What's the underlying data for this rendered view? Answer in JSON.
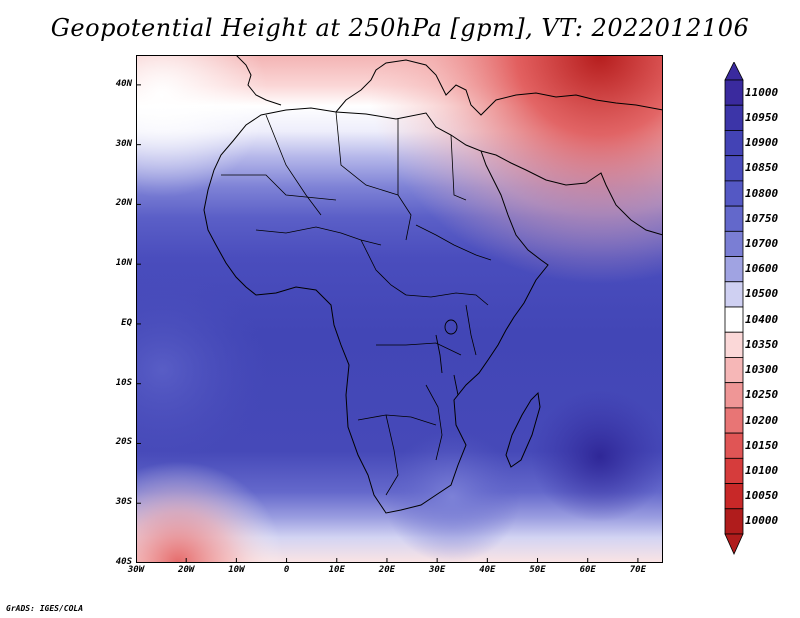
{
  "title": "Geopotential Height at 250hPa [gpm], VT: 2022012106",
  "credit": "GrADS: IGES/COLA",
  "map": {
    "lat_range": [
      -40,
      45
    ],
    "lon_range": [
      -30,
      75
    ],
    "lat_ticks": [
      {
        "value": 40,
        "label": "40N"
      },
      {
        "value": 30,
        "label": "30N"
      },
      {
        "value": 20,
        "label": "20N"
      },
      {
        "value": 10,
        "label": "10N"
      },
      {
        "value": 0,
        "label": "EQ"
      },
      {
        "value": -10,
        "label": "10S"
      },
      {
        "value": -20,
        "label": "20S"
      },
      {
        "value": -30,
        "label": "30S"
      },
      {
        "value": -40,
        "label": "40S"
      }
    ],
    "lon_ticks": [
      {
        "value": -30,
        "label": "30W"
      },
      {
        "value": -20,
        "label": "20W"
      },
      {
        "value": -10,
        "label": "10W"
      },
      {
        "value": 0,
        "label": "0"
      },
      {
        "value": 10,
        "label": "10E"
      },
      {
        "value": 20,
        "label": "20E"
      },
      {
        "value": 30,
        "label": "30E"
      },
      {
        "value": 40,
        "label": "40E"
      },
      {
        "value": 50,
        "label": "50E"
      },
      {
        "value": 60,
        "label": "60E"
      },
      {
        "value": 70,
        "label": "70E"
      }
    ]
  },
  "colorbar": {
    "labels": [
      "11000",
      "10950",
      "10900",
      "10850",
      "10800",
      "10750",
      "10700",
      "10600",
      "10500",
      "10400",
      "10350",
      "10300",
      "10250",
      "10200",
      "10150",
      "10100",
      "10050",
      "10000"
    ],
    "colors": [
      "#3a2a9e",
      "#3c35a8",
      "#4343b5",
      "#4a4cbd",
      "#5458c4",
      "#6368cb",
      "#7a7ed4",
      "#a0a3e2",
      "#cfd0f2",
      "#ffffff",
      "#fbd8d8",
      "#f6b7b7",
      "#ef9696",
      "#e87575",
      "#e05555",
      "#d63c3c",
      "#c82828",
      "#b01c1c"
    ]
  }
}
